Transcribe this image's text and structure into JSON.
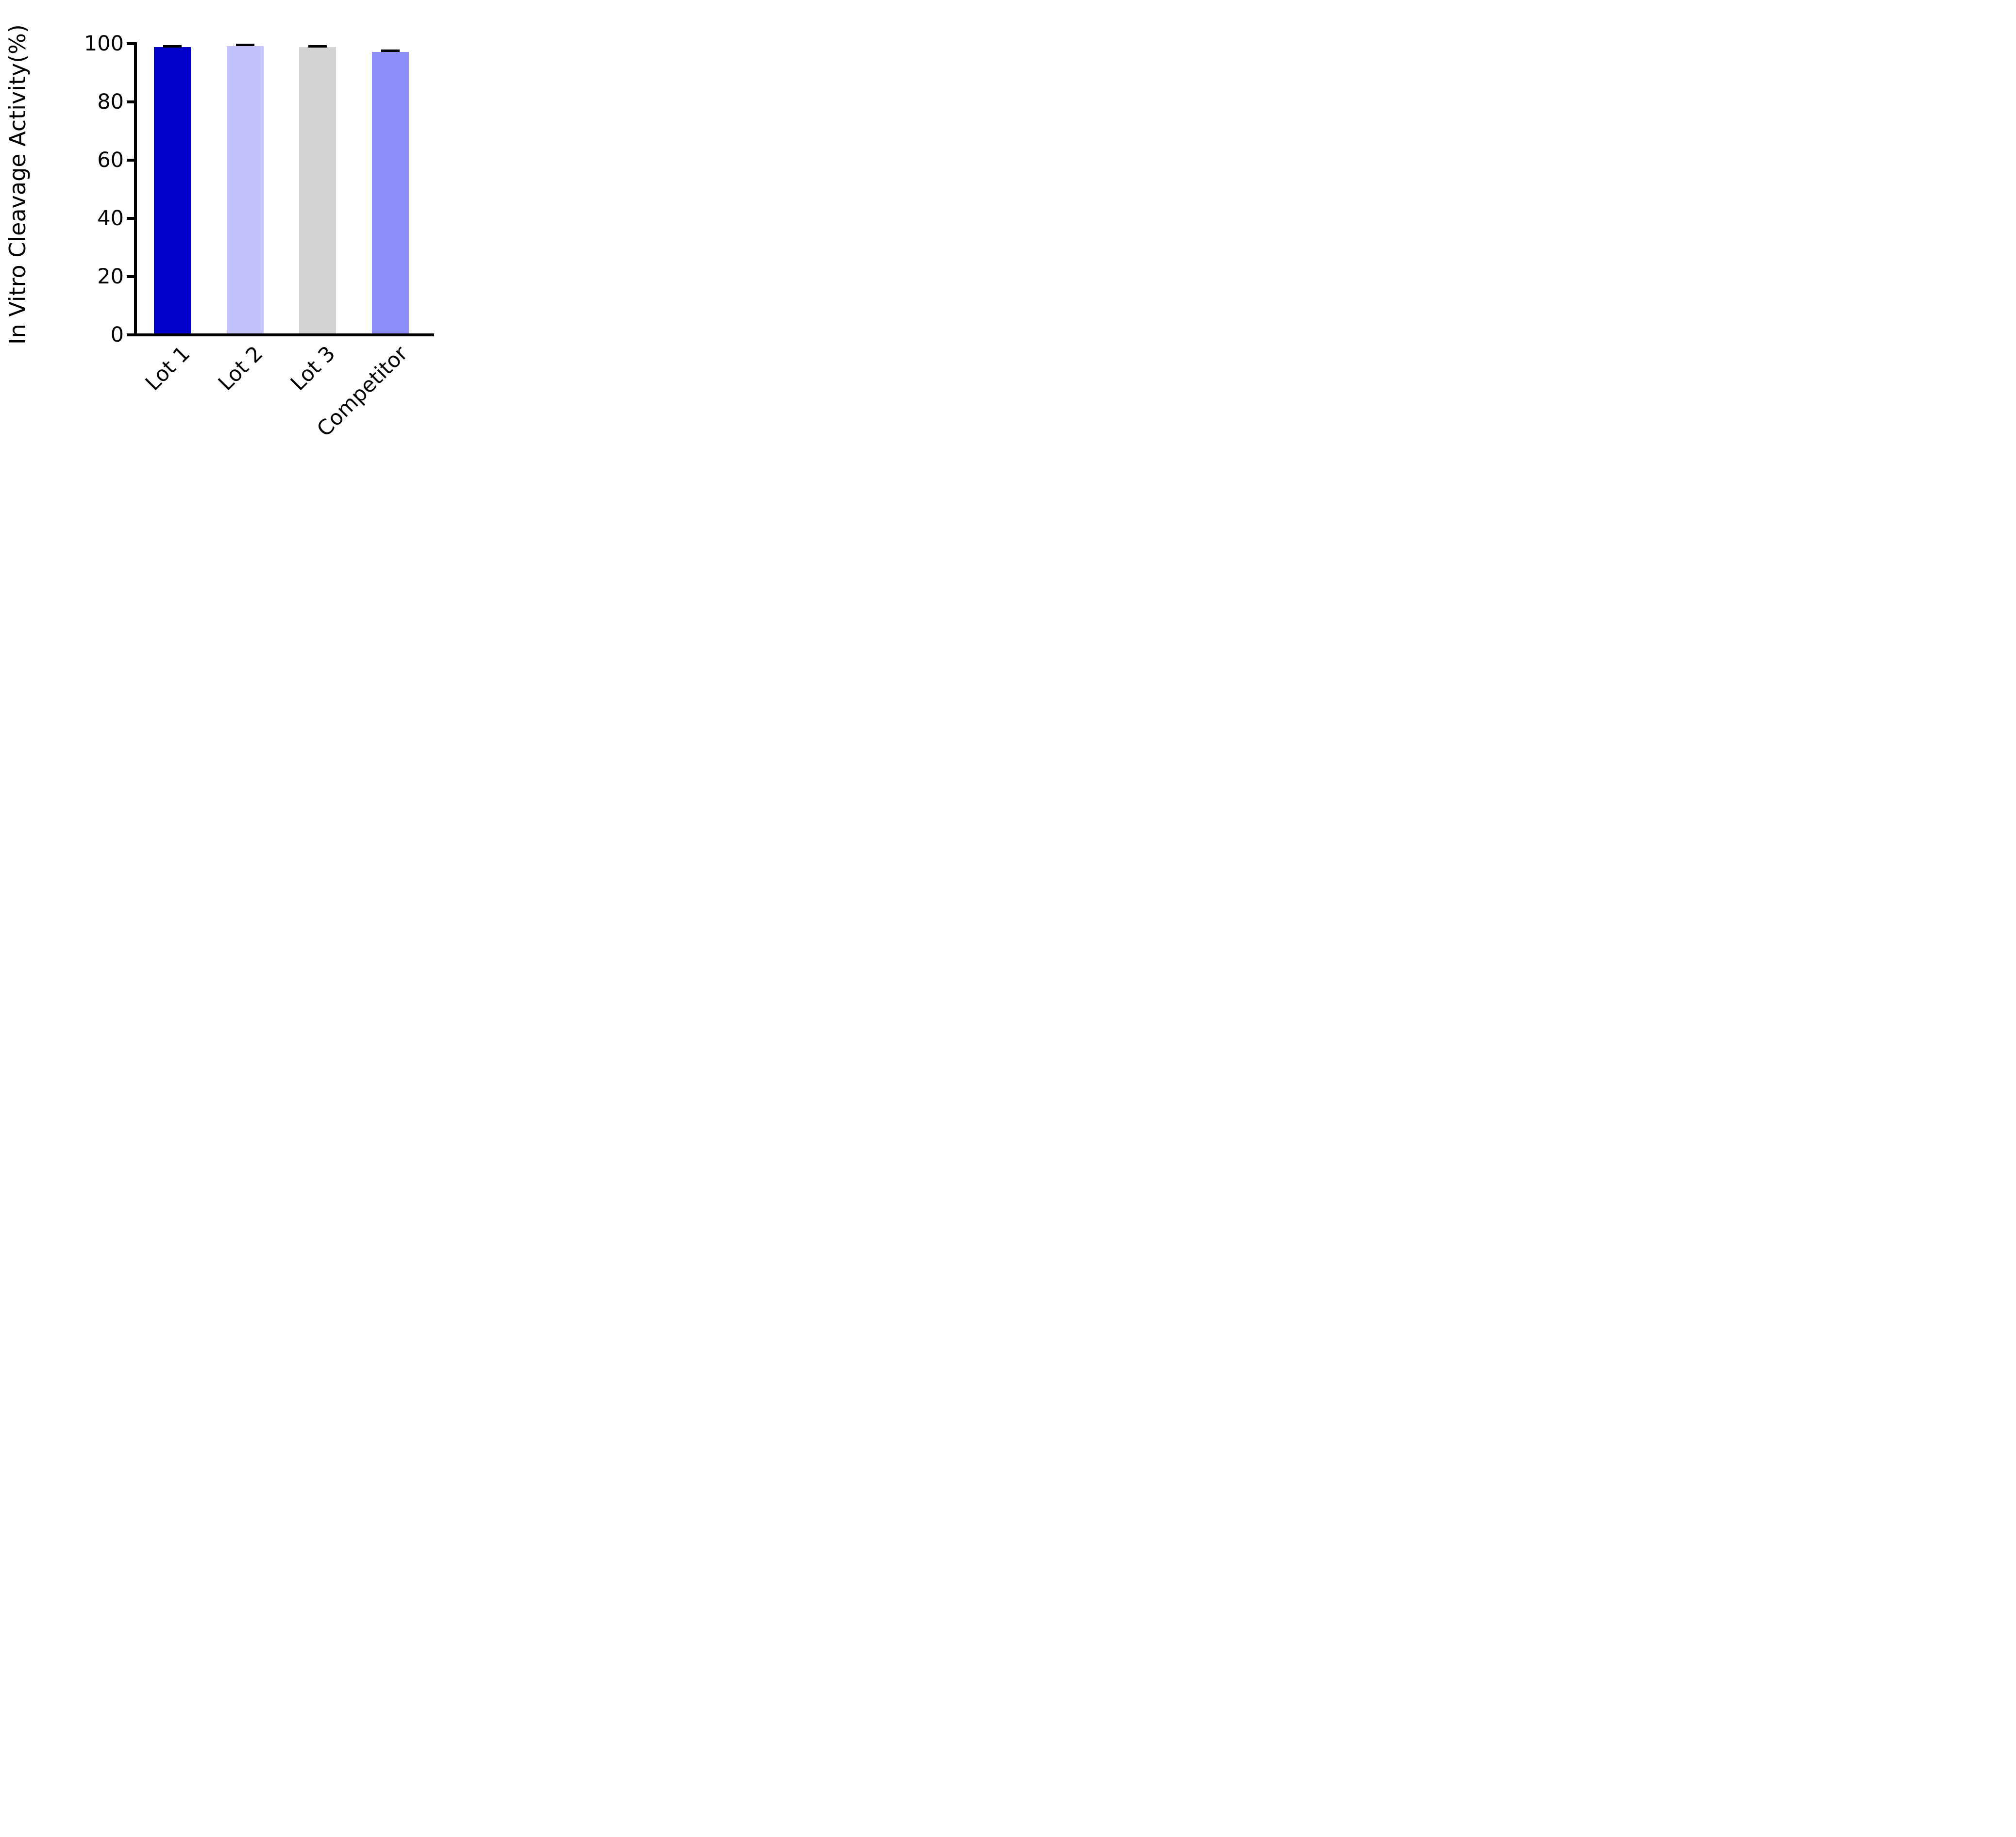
{
  "chart_data": {
    "type": "bar",
    "title": "",
    "ylabel": "In Vitro Cleavage Activity(%)",
    "xlabel": "",
    "categories": [
      "Lot 1",
      "Lot 2",
      "Lot 3",
      "Competitor"
    ],
    "values": [
      98.8,
      99.2,
      98.8,
      97.2
    ],
    "errors": [
      0.4,
      0.4,
      0.4,
      0.5
    ],
    "bar_colors": [
      "#0000C8",
      "#C2C2FC",
      "#D3D3D3",
      "#8C8CFA"
    ],
    "yticks": [
      0,
      20,
      40,
      60,
      80,
      100
    ],
    "ylim": [
      0,
      100
    ],
    "axis_color": "#000000",
    "grid": false,
    "legend_shown": false
  }
}
